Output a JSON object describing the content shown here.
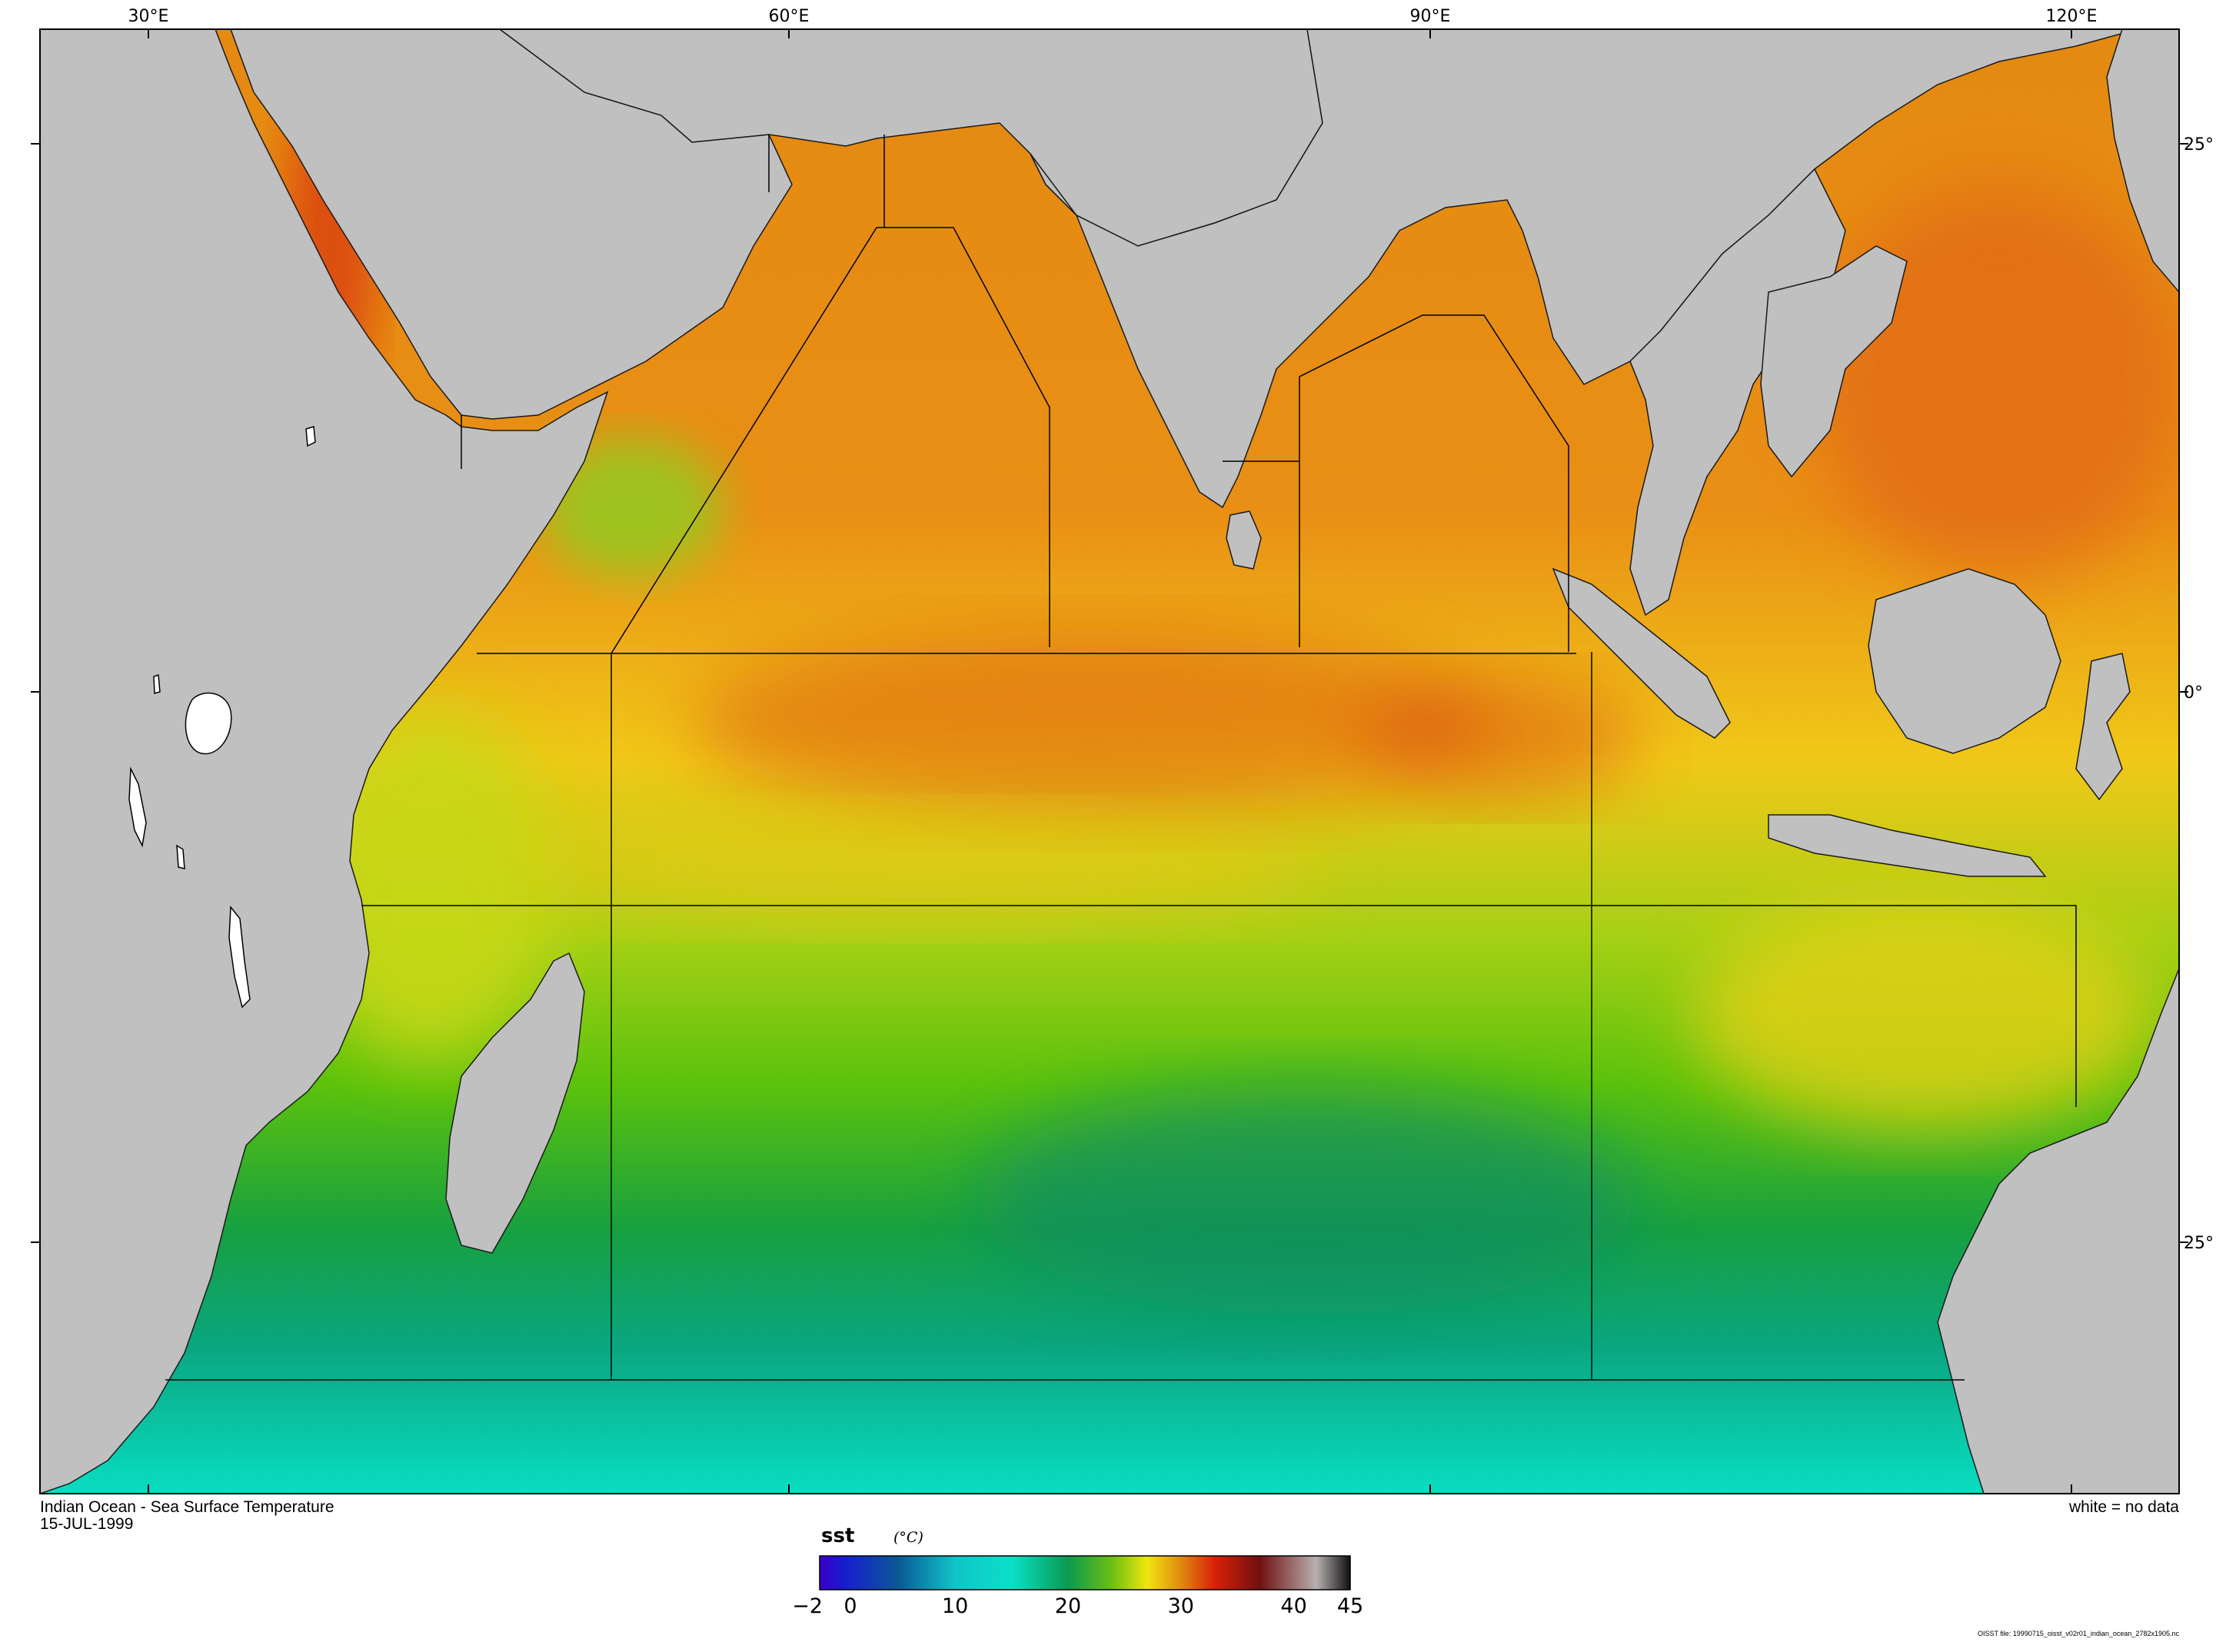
{
  "map": {
    "title": "Indian Ocean - Sea Surface Temperature",
    "date": "15-JUL-1999",
    "no_data_note": "white = no data",
    "source_file": "OISST file: 19990715_oisst_v02r01_indian_ocean_2782x1905.nc",
    "lon_labels": [
      "30°E",
      "60°E",
      "90°E",
      "120°E"
    ],
    "lat_labels": [
      "25°",
      "0°",
      "25°"
    ],
    "colors": {
      "land": "#c0c0c0",
      "no_data": "#ffffff",
      "region_lines": "#000000"
    }
  },
  "colorbar": {
    "title": "sst",
    "unit": "(°C)",
    "ticks": [
      "-2",
      "0",
      "10",
      "20",
      "30",
      "40",
      "45"
    ],
    "range": [
      -2,
      45
    ],
    "stops": [
      {
        "value": -2,
        "color": "#3a00c8"
      },
      {
        "value": 0,
        "color": "#1a1ad0"
      },
      {
        "value": 5,
        "color": "#0a5a96"
      },
      {
        "value": 10,
        "color": "#10c4c8"
      },
      {
        "value": 15,
        "color": "#0ae0c8"
      },
      {
        "value": 20,
        "color": "#0a9a50"
      },
      {
        "value": 24,
        "color": "#70c010"
      },
      {
        "value": 27,
        "color": "#f0e610"
      },
      {
        "value": 30,
        "color": "#e08a10"
      },
      {
        "value": 33,
        "color": "#d82008"
      },
      {
        "value": 37,
        "color": "#701010"
      },
      {
        "value": 42,
        "color": "#b8b0b0"
      },
      {
        "value": 45,
        "color": "#101010"
      }
    ]
  }
}
